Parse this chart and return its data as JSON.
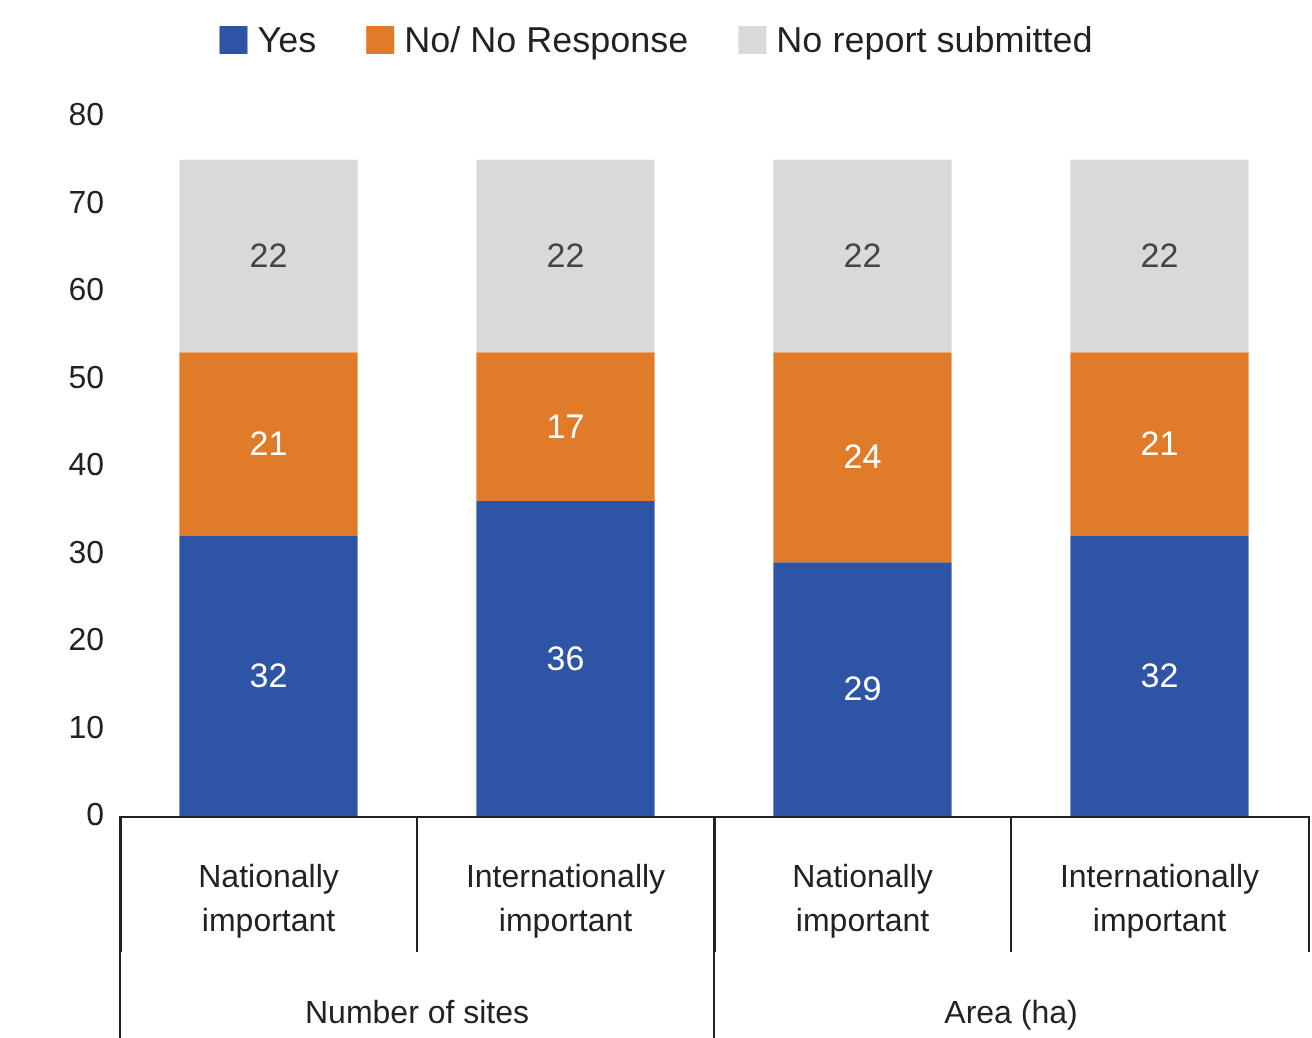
{
  "chart_data": {
    "type": "bar",
    "stacked": true,
    "categories": [
      "Nationally\nimportant",
      "Internationally\nimportant",
      "Nationally\nimportant",
      "Internationally\nimportant"
    ],
    "series": [
      {
        "name": "Yes",
        "color": "#2e54a6",
        "values": [
          32,
          36,
          29,
          32
        ]
      },
      {
        "name": "No/ No Response",
        "color": "#e07b2a",
        "values": [
          21,
          17,
          24,
          21
        ]
      },
      {
        "name": "No report submitted",
        "color": "#d9d9d9",
        "values": [
          22,
          22,
          22,
          22
        ]
      }
    ],
    "ylim": [
      0,
      80
    ],
    "yticks": [
      0,
      10,
      20,
      30,
      40,
      50,
      60,
      70,
      80
    ],
    "grid": false,
    "legend": "top",
    "data_labels": true,
    "annotations": [
      "Number of sites",
      "Area (ha)"
    ]
  }
}
